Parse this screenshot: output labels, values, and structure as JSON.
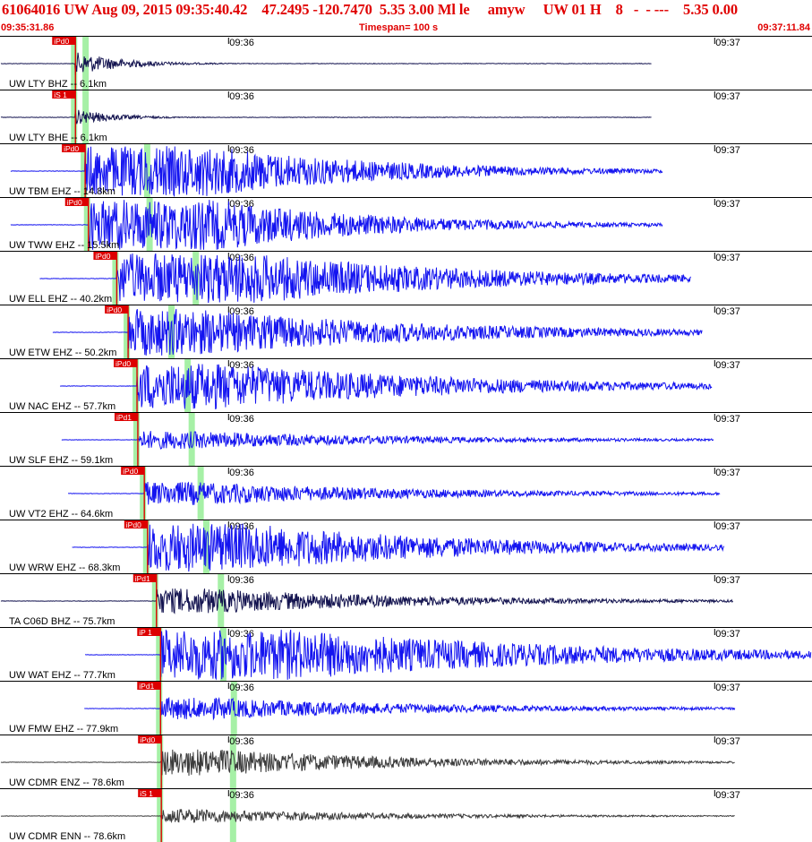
{
  "header": {
    "title": "61064016 UW Aug 09, 2015 09:35:40.42    47.2495 -120.7470  5.35 3.00 Ml le     amyw     UW 01 H    8   -  - ---    5.35 0.00",
    "start_time": "09:35:31.86",
    "timespan": "Timespan= 100 s",
    "end_time": "09:37:11.84"
  },
  "chart_data": {
    "type": "line",
    "title": "",
    "time_ticks": [
      {
        "label": "09:36",
        "t": 28.1
      },
      {
        "label": "09:37",
        "t": 88.1
      }
    ],
    "window_seconds": 100,
    "colors": {
      "blue": "#1414f0",
      "navy": "#141450",
      "gray": "#3c3c3c",
      "pick": "#dd0000",
      "green": "#a6f0a6"
    },
    "traces": [
      {
        "label": "UW LTY BHZ -- 6.1km",
        "color": "navy",
        "pick": "iPd0",
        "p": 9.2,
        "s": 10.4,
        "start": 0,
        "end": 80.3,
        "amp": 1.0,
        "onset_amp": 13,
        "decay": 6,
        "plateau": 0
      },
      {
        "label": "UW LTY BHE -- 6.1km",
        "color": "navy",
        "pick": "iS 1",
        "p": 9.2,
        "s": 10.4,
        "start": 0,
        "end": 80.3,
        "amp": 1.0,
        "onset_amp": 9,
        "decay": 5,
        "plateau": 0
      },
      {
        "label": "UW TBM EHZ -- 14.8km",
        "color": "blue",
        "pick": "iPd0",
        "p": 10.4,
        "s": 18.0,
        "start": 1.2,
        "end": 81.7,
        "amp": 1.0,
        "onset_amp": 30,
        "decay": 22,
        "plateau": 14
      },
      {
        "label": "UW TWW EHZ -- 15.5km",
        "color": "blue",
        "pick": "iPd0",
        "p": 10.8,
        "s": 18.3,
        "start": 1.2,
        "end": 81.7,
        "amp": 1.0,
        "onset_amp": 30,
        "decay": 20,
        "plateau": 15
      },
      {
        "label": "UW ELL EHZ -- 40.2km",
        "color": "blue",
        "pick": "iPd0",
        "p": 14.3,
        "s": 24.0,
        "start": 4.8,
        "end": 85.2,
        "amp": 1.0,
        "onset_amp": 30,
        "decay": 28,
        "plateau": 15
      },
      {
        "label": "UW ETW EHZ -- 50.2km",
        "color": "blue",
        "pick": "iPd0",
        "p": 15.7,
        "s": 21.0,
        "start": 6.4,
        "end": 86.6,
        "amp": 1.0,
        "onset_amp": 26,
        "decay": 30,
        "plateau": 8
      },
      {
        "label": "UW NAC EHZ -- 57.7km",
        "color": "blue",
        "pick": "iPd0",
        "p": 16.8,
        "s": 23.0,
        "start": 7.3,
        "end": 87.8,
        "amp": 1.0,
        "onset_amp": 26,
        "decay": 30,
        "plateau": 10
      },
      {
        "label": "UW SLF EHZ -- 59.1km",
        "color": "blue",
        "pick": "iPd1",
        "p": 16.9,
        "s": 23.5,
        "start": 7.5,
        "end": 88.0,
        "amp": 1.0,
        "onset_amp": 10,
        "decay": 30,
        "plateau": 6
      },
      {
        "label": "UW VT2 EHZ -- 64.6km",
        "color": "blue",
        "pick": "iPd0",
        "p": 17.7,
        "s": 24.6,
        "start": 8.3,
        "end": 88.8,
        "amp": 1.0,
        "onset_amp": 13,
        "decay": 30,
        "plateau": 6
      },
      {
        "label": "UW WRW EHZ -- 68.3km",
        "color": "blue",
        "pick": "iPd0",
        "p": 18.1,
        "s": 25.3,
        "start": 8.8,
        "end": 89.3,
        "amp": 1.0,
        "onset_amp": 27,
        "decay": 28,
        "plateau": 12
      },
      {
        "label": "TA C06D BHZ -- 75.7km",
        "color": "navy",
        "pick": "iPd1",
        "p": 19.2,
        "s": 27.1,
        "start": 0,
        "end": 90.4,
        "amp": 1.0,
        "onset_amp": 14,
        "decay": 28,
        "plateau": 6
      },
      {
        "label": "UW WAT EHZ -- 77.7km",
        "color": "blue",
        "pick": "iP 1",
        "p": 19.7,
        "s": 27.4,
        "start": 10.4,
        "end": 100,
        "amp": 1.0,
        "onset_amp": 30,
        "decay": 35,
        "plateau": 14
      },
      {
        "label": "UW FMW EHZ -- 77.9km",
        "color": "blue",
        "pick": "iPd1",
        "p": 19.7,
        "s": 28.7,
        "start": 10.3,
        "end": 90.6,
        "amp": 1.0,
        "onset_amp": 12,
        "decay": 30,
        "plateau": 6
      },
      {
        "label": "UW CDMR ENZ -- 78.6km",
        "color": "gray",
        "pick": "iPd0",
        "p": 19.8,
        "s": 28.6,
        "start": 0,
        "end": 90.6,
        "amp": 1.0,
        "onset_amp": 15,
        "decay": 25,
        "plateau": 6
      },
      {
        "label": "UW CDMR ENN -- 78.6km",
        "color": "gray",
        "pick": "iS 1",
        "p": 19.8,
        "s": 28.6,
        "start": 0,
        "end": 90.6,
        "amp": 1.0,
        "onset_amp": 8,
        "decay": 25,
        "plateau": 4
      }
    ]
  }
}
